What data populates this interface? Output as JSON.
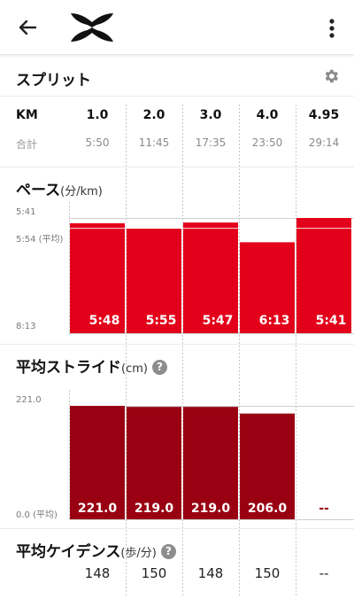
{
  "header": {
    "back_icon": "arrow-left-icon",
    "logo": "under-armour-logo",
    "menu_icon": "more-vertical-icon"
  },
  "splits": {
    "title": "スプリット",
    "settings_icon": "gear-icon",
    "km_header": "KM",
    "total_label": "合計",
    "columns": [
      {
        "km": "1.0",
        "total": "5:50",
        "pace": "5:48",
        "stride": "221.0",
        "cadence": "148"
      },
      {
        "km": "2.0",
        "total": "11:45",
        "pace": "5:55",
        "stride": "219.0",
        "cadence": "150"
      },
      {
        "km": "3.0",
        "total": "17:35",
        "pace": "5:47",
        "stride": "219.0",
        "cadence": "148"
      },
      {
        "km": "4.0",
        "total": "23:50",
        "pace": "6:13",
        "stride": "206.0",
        "cadence": "150"
      },
      {
        "km": "4.95",
        "total": "29:14",
        "pace": "5:41",
        "stride": "--",
        "cadence": "--"
      }
    ]
  },
  "pace_section": {
    "title": "ペース",
    "unit": "(分/km)",
    "axis_top": "5:41",
    "axis_avg": "5:54 (平均)",
    "axis_bottom": "8:13",
    "color": "#e2001a"
  },
  "stride_section": {
    "title": "平均ストライド",
    "unit": "(cm)",
    "help_icon": "question-icon",
    "help": "?",
    "axis_top": "221.0",
    "axis_bottom": "0.0 (平均)",
    "color": "#990012"
  },
  "cadence_section": {
    "title": "平均ケイデンス",
    "unit": "(歩/分)",
    "help_icon": "question-icon",
    "help": "?"
  },
  "chart_data": [
    {
      "type": "bar",
      "categories": [
        "1.0",
        "2.0",
        "3.0",
        "4.0",
        "4.95"
      ],
      "values_text": [
        "5:48",
        "5:55",
        "5:47",
        "6:13",
        "5:41"
      ],
      "values_seconds": [
        348,
        355,
        347,
        373,
        341
      ],
      "ylim_seconds": [
        493,
        341
      ],
      "avg_seconds": 354
    },
    {
      "type": "bar",
      "categories": [
        "1.0",
        "2.0",
        "3.0",
        "4.0",
        "4.95"
      ],
      "values": [
        221.0,
        219.0,
        219.0,
        206.0,
        null
      ],
      "ylim": [
        0,
        221.0
      ]
    }
  ]
}
